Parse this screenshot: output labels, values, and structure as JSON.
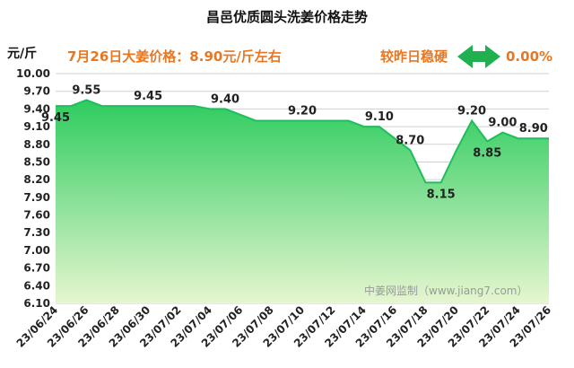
{
  "chart_data": {
    "type": "area",
    "title": "昌邑优质圆头洗姜价格走势",
    "ylabel": "元/斤",
    "headline": "7月26日大姜价格：8.90元/斤左右",
    "change_label": "较昨日稳硬",
    "change_value": "0.00%",
    "watermark": "中姜网监制（www.jiang7.com）",
    "ylim": [
      6.1,
      10.0
    ],
    "yticks": [
      "10.00",
      "9.70",
      "9.40",
      "9.10",
      "8.80",
      "8.50",
      "8.20",
      "7.90",
      "7.60",
      "7.30",
      "7.00",
      "6.70",
      "6.40",
      "6.10"
    ],
    "x": [
      "23/06/24",
      "23/06/25",
      "23/06/26",
      "23/06/27",
      "23/06/28",
      "23/06/29",
      "23/06/30",
      "23/07/01",
      "23/07/02",
      "23/07/03",
      "23/07/04",
      "23/07/05",
      "23/07/06",
      "23/07/07",
      "23/07/08",
      "23/07/09",
      "23/07/10",
      "23/07/11",
      "23/07/12",
      "23/07/13",
      "23/07/14",
      "23/07/15",
      "23/07/16",
      "23/07/17",
      "23/07/18",
      "23/07/19",
      "23/07/20",
      "23/07/21",
      "23/07/22",
      "23/07/23",
      "23/07/24",
      "23/07/25",
      "23/07/26"
    ],
    "xticks": [
      "23/06/24",
      "23/06/26",
      "23/06/28",
      "23/06/30",
      "23/07/02",
      "23/07/04",
      "23/07/06",
      "23/07/08",
      "23/07/10",
      "23/07/12",
      "23/07/14",
      "23/07/16",
      "23/07/18",
      "23/07/20",
      "23/07/22",
      "23/07/24",
      "23/07/26"
    ],
    "values": [
      9.45,
      9.45,
      9.55,
      9.45,
      9.45,
      9.45,
      9.45,
      9.45,
      9.45,
      9.45,
      9.4,
      9.4,
      9.3,
      9.2,
      9.2,
      9.2,
      9.2,
      9.2,
      9.2,
      9.2,
      9.1,
      9.1,
      8.9,
      8.7,
      8.15,
      8.15,
      8.7,
      9.2,
      8.85,
      9.0,
      8.9,
      8.9,
      8.9
    ],
    "data_labels": [
      {
        "index": 0,
        "text": "9.45",
        "pos": "below"
      },
      {
        "index": 2,
        "text": "9.55",
        "pos": "above"
      },
      {
        "index": 6,
        "text": "9.45",
        "pos": "above"
      },
      {
        "index": 11,
        "text": "9.40",
        "pos": "above"
      },
      {
        "index": 16,
        "text": "9.20",
        "pos": "above"
      },
      {
        "index": 21,
        "text": "9.10",
        "pos": "above"
      },
      {
        "index": 23,
        "text": "8.70",
        "pos": "above"
      },
      {
        "index": 25,
        "text": "8.15",
        "pos": "below"
      },
      {
        "index": 27,
        "text": "9.20",
        "pos": "above"
      },
      {
        "index": 28,
        "text": "8.85",
        "pos": "below"
      },
      {
        "index": 29,
        "text": "9.00",
        "pos": "above"
      },
      {
        "index": 31,
        "text": "8.90",
        "pos": "above"
      }
    ],
    "grid": true,
    "colors": {
      "line": "#1fbe5c",
      "fill_top": "#2ecc5f",
      "fill_bottom": "#e6f6d0",
      "arrow": "#20b050",
      "headline": "#e87722"
    }
  }
}
